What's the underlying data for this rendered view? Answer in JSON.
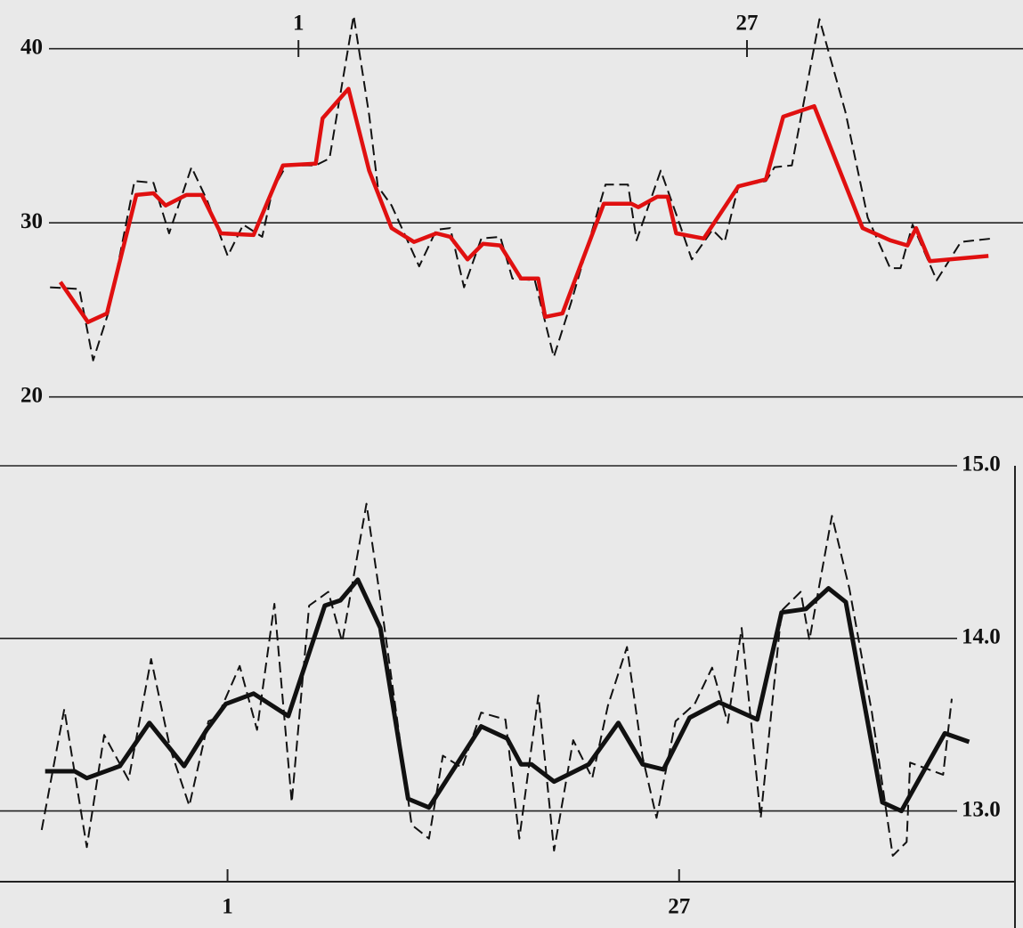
{
  "chart_data": [
    {
      "type": "line",
      "y_axis_side": "left",
      "x_axis_side": "top",
      "grid": true,
      "xlim": [
        -16.3,
        43
      ],
      "xticks": [
        1,
        27
      ],
      "ylim": [
        16.2,
        42.8
      ],
      "yticks": [
        20,
        30,
        40
      ],
      "series": [
        {
          "color": "#111111",
          "dashed": true,
          "width": 2,
          "x": [
            -13.4,
            -11.7,
            -10.9,
            -10.0,
            -8.5,
            -7.4,
            -6.5,
            -5.2,
            -4.3,
            -3.1,
            -2.2,
            -1.1,
            -0.5,
            0.3,
            2.0,
            2.8,
            4.2,
            5.1,
            5.6,
            6.4,
            8.0,
            9.0,
            9.8,
            10.6,
            11.6,
            12.7,
            13.4,
            14.7,
            15.8,
            16.8,
            18.8,
            20.1,
            20.6,
            22.0,
            22.9,
            23.8,
            25.0,
            25.7,
            26.5,
            28.1,
            28.6,
            29.6,
            31.2,
            32.7,
            34.0,
            35.3,
            35.9,
            36.6,
            38.0,
            39.4,
            41.2
          ],
          "values": [
            26.3,
            26.2,
            22.1,
            24.9,
            32.4,
            32.3,
            29.4,
            33.2,
            31.3,
            28.1,
            29.9,
            29.2,
            31.9,
            33.3,
            33.3,
            33.7,
            41.9,
            36.2,
            32.1,
            31.0,
            27.5,
            29.6,
            29.7,
            26.3,
            29.1,
            29.2,
            26.8,
            26.7,
            22.3,
            25.4,
            32.2,
            32.2,
            29.0,
            33.0,
            30.5,
            27.9,
            29.6,
            28.9,
            32.1,
            32.4,
            33.2,
            33.3,
            41.7,
            36.4,
            30.3,
            27.4,
            27.4,
            29.9,
            26.7,
            28.9,
            29.1
          ]
        },
        {
          "color": "#e01010",
          "dashed": false,
          "width": 4.5,
          "x": [
            -12.8,
            -11.2,
            -10.1,
            -8.4,
            -7.4,
            -6.7,
            -5.5,
            -4.6,
            -3.5,
            -1.6,
            0.1,
            2.0,
            2.4,
            3.9,
            5.1,
            6.4,
            7.7,
            9.0,
            9.8,
            10.8,
            11.7,
            12.7,
            13.9,
            14.9,
            15.3,
            16.3,
            18.7,
            20.3,
            20.7,
            21.8,
            22.4,
            22.9,
            24.5,
            26.5,
            28.1,
            29.1,
            30.9,
            33.7,
            35.3,
            36.3,
            36.8,
            37.6,
            41.0
          ],
          "values": [
            26.6,
            24.3,
            24.8,
            31.6,
            31.7,
            31.0,
            31.6,
            31.6,
            29.4,
            29.3,
            33.3,
            33.4,
            36.0,
            37.7,
            33.0,
            29.7,
            28.9,
            29.4,
            29.2,
            27.9,
            28.8,
            28.7,
            26.8,
            26.8,
            24.6,
            24.8,
            31.1,
            31.1,
            30.9,
            31.5,
            31.5,
            29.4,
            29.1,
            32.1,
            32.5,
            36.1,
            36.7,
            29.7,
            29.0,
            28.7,
            29.7,
            27.8,
            28.1
          ]
        }
      ]
    },
    {
      "type": "line",
      "y_axis_side": "right",
      "x_axis_side": "bottom",
      "grid": true,
      "xlim": [
        -12.1,
        46.8
      ],
      "xticks": [
        1,
        27
      ],
      "ylim": [
        12.59,
        15.0
      ],
      "yticks": [
        {
          "value": 13,
          "label": "13.0"
        },
        {
          "value": 14,
          "label": "14.0"
        },
        {
          "value": 15,
          "label": "15.0"
        }
      ],
      "series": [
        {
          "color": "#111111",
          "dashed": true,
          "width": 2,
          "x": [
            -9.7,
            -8.4,
            -7.1,
            -6.1,
            -4.7,
            -3.4,
            -2.3,
            -1.2,
            -0.1,
            0.4,
            1.7,
            2.7,
            3.7,
            4.7,
            5.7,
            6.8,
            7.6,
            9.0,
            10.0,
            11.6,
            12.6,
            13.4,
            14.5,
            15.6,
            17.0,
            17.8,
            18.9,
            19.8,
            20.9,
            22.0,
            22.9,
            24.0,
            24.9,
            25.7,
            26.8,
            27.9,
            28.9,
            29.8,
            30.6,
            31.7,
            32.9,
            34.0,
            34.5,
            35.8,
            36.8,
            38.1,
            39.3,
            40.1,
            40.3,
            42.2,
            42.7
          ],
          "values": [
            12.89,
            13.59,
            12.79,
            13.44,
            13.18,
            13.88,
            13.36,
            13.03,
            13.52,
            13.54,
            13.84,
            13.47,
            14.2,
            13.05,
            14.19,
            14.27,
            13.98,
            14.78,
            14.09,
            12.92,
            12.84,
            13.32,
            13.25,
            13.57,
            13.53,
            12.84,
            13.67,
            12.77,
            13.41,
            13.19,
            13.61,
            13.95,
            13.31,
            12.96,
            13.52,
            13.62,
            13.83,
            13.51,
            14.06,
            12.96,
            14.16,
            14.27,
            13.99,
            14.71,
            14.29,
            13.57,
            12.74,
            12.82,
            13.28,
            13.21,
            13.65
          ]
        },
        {
          "color": "#111111",
          "dashed": false,
          "width": 5,
          "x": [
            -9.5,
            -7.8,
            -7.1,
            -5.2,
            -3.5,
            -1.5,
            -0.2,
            0.9,
            2.5,
            4.5,
            6.6,
            7.5,
            8.5,
            9.8,
            11.4,
            12.6,
            15.6,
            17.1,
            17.9,
            18.5,
            19.8,
            21.8,
            23.5,
            24.9,
            26.1,
            27.6,
            29.3,
            31.5,
            32.9,
            34.3,
            35.6,
            36.6,
            38.7,
            39.8,
            42.3,
            43.7
          ],
          "values": [
            13.23,
            13.23,
            13.19,
            13.26,
            13.51,
            13.26,
            13.47,
            13.62,
            13.68,
            13.55,
            14.19,
            14.22,
            14.34,
            14.06,
            13.07,
            13.02,
            13.49,
            13.42,
            13.27,
            13.27,
            13.17,
            13.27,
            13.51,
            13.27,
            13.24,
            13.54,
            13.63,
            13.53,
            14.15,
            14.17,
            14.29,
            14.21,
            13.05,
            13.0,
            13.45,
            13.4
          ]
        }
      ]
    }
  ]
}
